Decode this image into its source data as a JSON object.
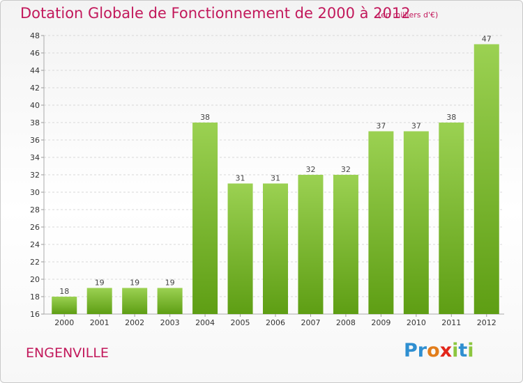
{
  "title": "Dotation Globale de Fonctionnement de 2000 à 2012",
  "units_note": "(en milliers d'€)",
  "commune": "ENGENVILLE",
  "logo": {
    "text": "Proxiti",
    "colors": [
      "#2f8fd1",
      "#e27d1b",
      "#8cc63f",
      "#e2261a"
    ]
  },
  "colors": {
    "title": "#c2185b",
    "bar_top": "#9bd152",
    "bar_bottom": "#5e9e14",
    "grid": "#d8d8d8"
  },
  "chart_data": {
    "type": "bar",
    "title": "Dotation Globale de Fonctionnement de 2000 à 2012",
    "xlabel": "",
    "ylabel": "",
    "categories": [
      "2000",
      "2001",
      "2002",
      "2003",
      "2004",
      "2005",
      "2006",
      "2007",
      "2008",
      "2009",
      "2010",
      "2011",
      "2012"
    ],
    "values": [
      18,
      19,
      19,
      19,
      38,
      31,
      31,
      32,
      32,
      37,
      37,
      38,
      47
    ],
    "ylim": [
      16,
      48
    ],
    "yticks": [
      16,
      18,
      20,
      22,
      24,
      26,
      28,
      30,
      32,
      34,
      36,
      38,
      40,
      42,
      44,
      46,
      48
    ],
    "grid": true,
    "data_labels": true
  }
}
